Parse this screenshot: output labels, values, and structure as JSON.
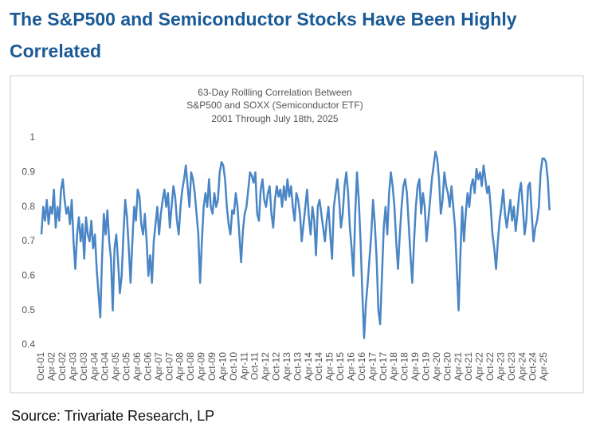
{
  "heading": "The S&P500 and Semiconductor Stocks Have Been Highly Correlated",
  "source": "Source: Trivariate Research, LP",
  "chart_data": {
    "type": "line",
    "title": [
      "63-Day Rollling Correlation Between",
      "S&P500 and SOXX (Semiconductor ETF)",
      "2001 Through July 18th, 2025"
    ],
    "categories": [
      "Oct-01",
      null,
      null,
      null,
      null,
      null,
      "Apr-02",
      null,
      null,
      null,
      null,
      null,
      "Oct-02",
      null,
      null,
      null,
      null,
      null,
      "Apr-03",
      null,
      null,
      null,
      null,
      null,
      "Oct-03",
      null,
      null,
      null,
      null,
      null,
      "Apr-04",
      null,
      null,
      null,
      null,
      null,
      "Oct-04",
      null,
      null,
      null,
      null,
      null,
      "Apr-05",
      null,
      null,
      null,
      null,
      null,
      "Oct-05",
      null,
      null,
      null,
      null,
      null,
      "Apr-06",
      null,
      null,
      null,
      null,
      null,
      "Oct-06",
      null,
      null,
      null,
      null,
      null,
      "Apr-07",
      null,
      null,
      null,
      null,
      null,
      "Oct-07",
      null,
      null,
      null,
      null,
      null,
      "Apr-08",
      null,
      null,
      null,
      null,
      null,
      "Oct-08",
      null,
      null,
      null,
      null,
      null,
      "Apr-09",
      null,
      null,
      null,
      null,
      null,
      "Oct-09",
      null,
      null,
      null,
      null,
      null,
      "Apr-10",
      null,
      null,
      null,
      null,
      null,
      "Oct-10",
      null,
      null,
      null,
      null,
      null,
      "Apr-11",
      null,
      null,
      null,
      null,
      null,
      "Oct-11",
      null,
      null,
      null,
      null,
      null,
      "Apr-12",
      null,
      null,
      null,
      null,
      null,
      "Oct-12",
      null,
      null,
      null,
      null,
      null,
      "Apr-13",
      null,
      null,
      null,
      null,
      null,
      "Oct-13",
      null,
      null,
      null,
      null,
      null,
      "Apr-14",
      null,
      null,
      null,
      null,
      null,
      "Oct-14",
      null,
      null,
      null,
      null,
      null,
      "Apr-15",
      null,
      null,
      null,
      null,
      null,
      "Oct-15",
      null,
      null,
      null,
      null,
      null,
      "Apr-16",
      null,
      null,
      null,
      null,
      null,
      "Oct-16",
      null,
      null,
      null,
      null,
      null,
      "Apr-17",
      null,
      null,
      null,
      null,
      null,
      "Oct-17",
      null,
      null,
      null,
      null,
      null,
      "Apr-18",
      null,
      null,
      null,
      null,
      null,
      "Oct-18",
      null,
      null,
      null,
      null,
      null,
      "Apr-19",
      null,
      null,
      null,
      null,
      null,
      "Oct-19",
      null,
      null,
      null,
      null,
      null,
      "Apr-20",
      null,
      null,
      null,
      null,
      null,
      "Oct-20",
      null,
      null,
      null,
      null,
      null,
      "Apr-21",
      null,
      null,
      null,
      null,
      null,
      "Oct-21",
      null,
      null,
      null,
      null,
      null,
      "Apr-22",
      null,
      null,
      null,
      null,
      null,
      "Oct-22",
      null,
      null,
      null,
      null,
      null,
      "Apr-23",
      null,
      null,
      null,
      null,
      null,
      "Oct-23",
      null,
      null,
      null,
      null,
      null,
      "Apr-24",
      null,
      null,
      null,
      null,
      null,
      "Oct-24",
      null,
      null,
      null,
      null,
      null,
      "Apr-25",
      null,
      null,
      null
    ],
    "series": [
      {
        "color": "#4a86c5",
        "values": [
          0.72,
          0.8,
          0.76,
          0.82,
          0.75,
          0.8,
          0.78,
          0.85,
          0.74,
          0.8,
          0.76,
          0.85,
          0.88,
          0.82,
          0.78,
          0.8,
          0.75,
          0.82,
          0.7,
          0.62,
          0.72,
          0.77,
          0.7,
          0.75,
          0.65,
          0.77,
          0.72,
          0.7,
          0.76,
          0.68,
          0.72,
          0.62,
          0.55,
          0.48,
          0.65,
          0.78,
          0.72,
          0.79,
          0.7,
          0.65,
          0.5,
          0.68,
          0.72,
          0.64,
          0.55,
          0.6,
          0.72,
          0.82,
          0.77,
          0.68,
          0.58,
          0.7,
          0.8,
          0.76,
          0.85,
          0.83,
          0.75,
          0.72,
          0.78,
          0.7,
          0.6,
          0.66,
          0.58,
          0.7,
          0.75,
          0.8,
          0.72,
          0.78,
          0.82,
          0.85,
          0.8,
          0.84,
          0.74,
          0.8,
          0.86,
          0.83,
          0.76,
          0.72,
          0.8,
          0.85,
          0.88,
          0.92,
          0.86,
          0.8,
          0.9,
          0.88,
          0.84,
          0.78,
          0.72,
          0.58,
          0.7,
          0.8,
          0.84,
          0.8,
          0.88,
          0.8,
          0.78,
          0.84,
          0.8,
          0.82,
          0.9,
          0.93,
          0.92,
          0.88,
          0.8,
          0.75,
          0.72,
          0.79,
          0.78,
          0.84,
          0.8,
          0.72,
          0.64,
          0.73,
          0.78,
          0.8,
          0.85,
          0.9,
          0.89,
          0.87,
          0.9,
          0.78,
          0.76,
          0.85,
          0.88,
          0.82,
          0.8,
          0.84,
          0.86,
          0.78,
          0.74,
          0.82,
          0.86,
          0.83,
          0.85,
          0.8,
          0.86,
          0.82,
          0.88,
          0.83,
          0.86,
          0.8,
          0.76,
          0.84,
          0.82,
          0.78,
          0.7,
          0.75,
          0.8,
          0.85,
          0.77,
          0.72,
          0.8,
          0.76,
          0.66,
          0.8,
          0.82,
          0.78,
          0.74,
          0.7,
          0.76,
          0.8,
          0.72,
          0.65,
          0.8,
          0.84,
          0.88,
          0.82,
          0.74,
          0.78,
          0.86,
          0.9,
          0.84,
          0.74,
          0.68,
          0.6,
          0.78,
          0.9,
          0.82,
          0.7,
          0.55,
          0.42,
          0.52,
          0.58,
          0.65,
          0.72,
          0.82,
          0.75,
          0.65,
          0.5,
          0.46,
          0.6,
          0.74,
          0.8,
          0.72,
          0.84,
          0.9,
          0.86,
          0.8,
          0.7,
          0.62,
          0.72,
          0.8,
          0.86,
          0.88,
          0.84,
          0.75,
          0.66,
          0.58,
          0.7,
          0.8,
          0.86,
          0.88,
          0.78,
          0.84,
          0.8,
          0.7,
          0.76,
          0.82,
          0.88,
          0.92,
          0.96,
          0.94,
          0.88,
          0.78,
          0.82,
          0.9,
          0.86,
          0.84,
          0.8,
          0.86,
          0.8,
          0.74,
          0.62,
          0.5,
          0.66,
          0.8,
          0.7,
          0.78,
          0.84,
          0.8,
          0.86,
          0.88,
          0.84,
          0.91,
          0.88,
          0.9,
          0.86,
          0.92,
          0.88,
          0.84,
          0.86,
          0.8,
          0.72,
          0.68,
          0.62,
          0.7,
          0.76,
          0.8,
          0.85,
          0.78,
          0.74,
          0.78,
          0.82,
          0.76,
          0.8,
          0.73,
          0.78,
          0.84,
          0.87,
          0.8,
          0.72,
          0.76,
          0.86,
          0.87,
          0.78,
          0.7,
          0.74,
          0.76,
          0.8,
          0.9,
          0.94,
          0.94,
          0.93,
          0.88,
          0.79
        ]
      }
    ],
    "ylim": [
      0.4,
      1
    ],
    "yticks": [
      0.4,
      0.5,
      0.6,
      0.7,
      0.8,
      0.9,
      1
    ],
    "grid": false
  }
}
